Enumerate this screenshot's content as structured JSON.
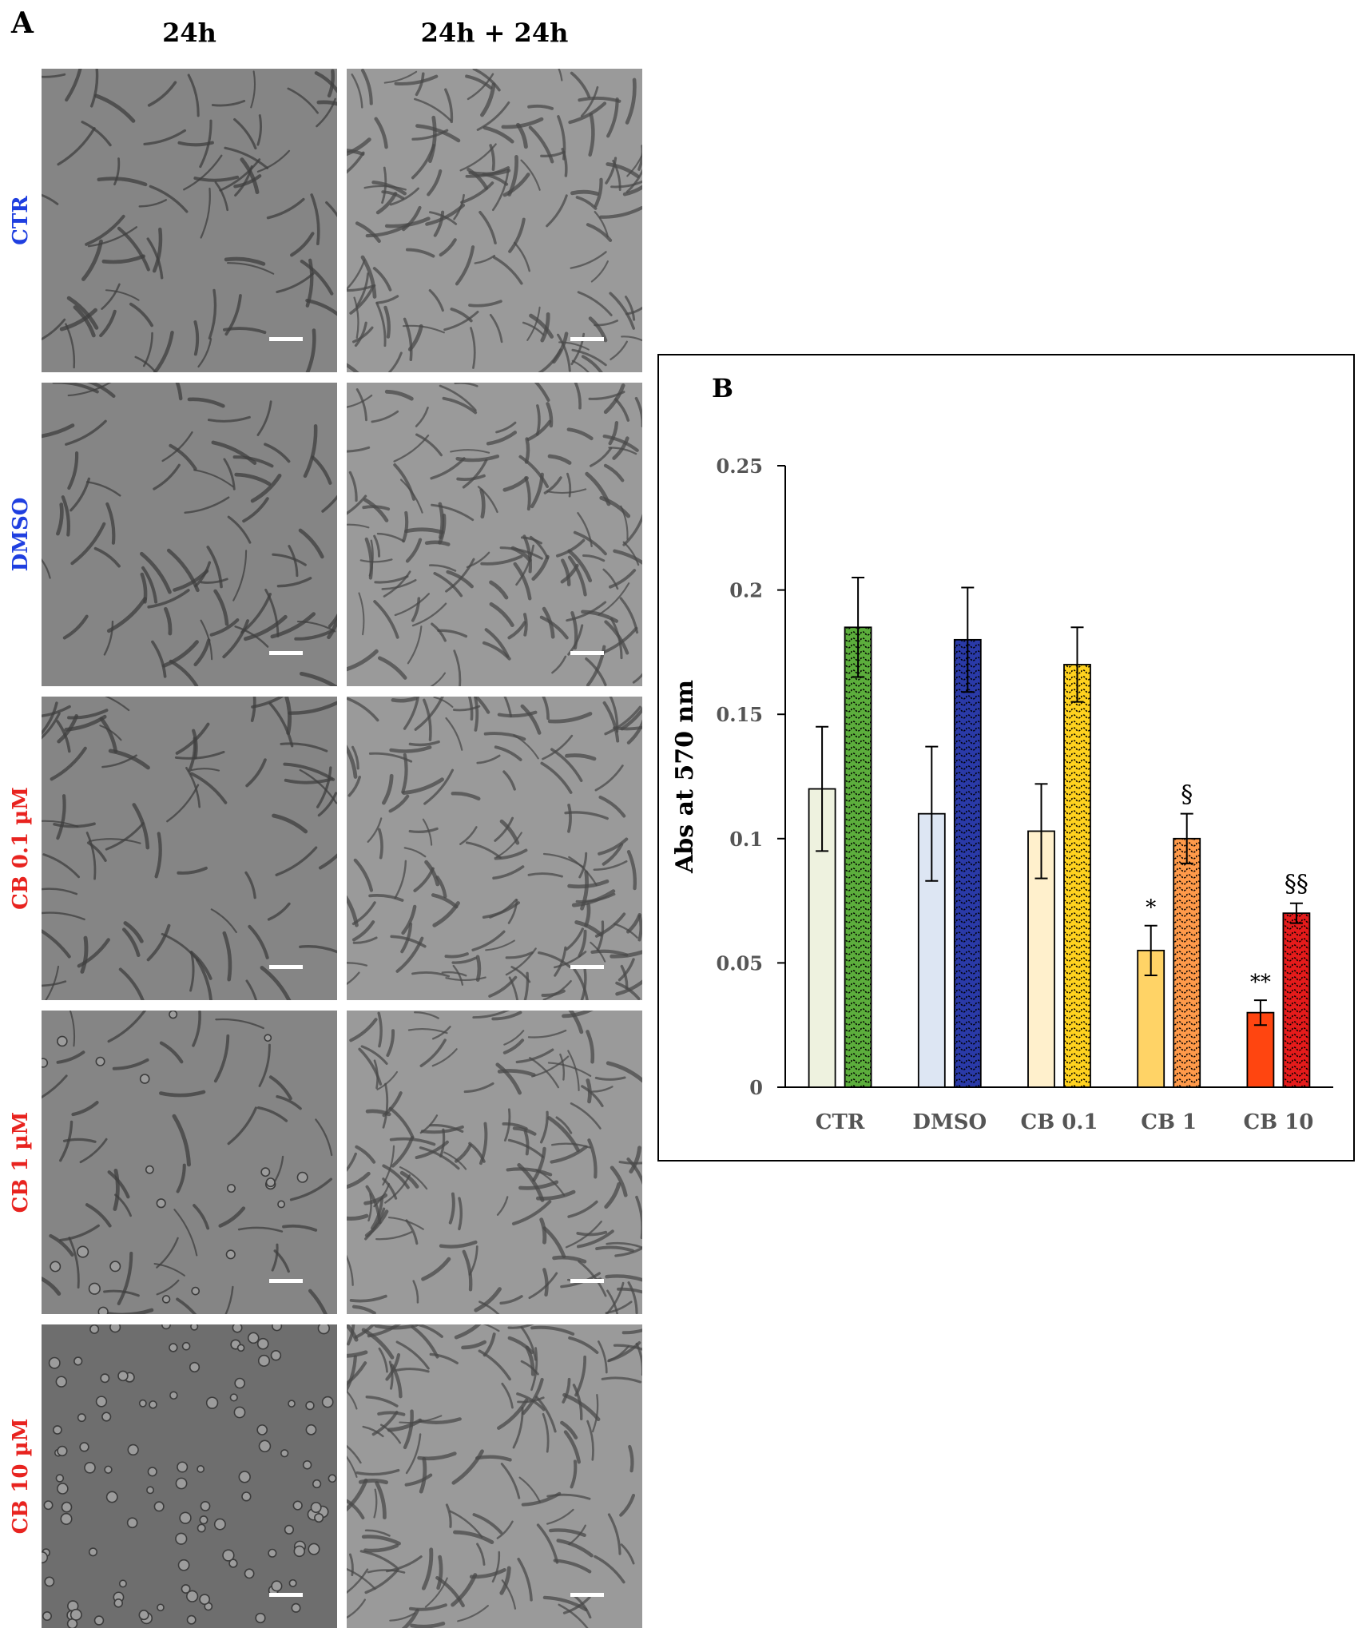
{
  "panel_a": {
    "letter": "A",
    "columns": [
      "24h",
      "24h + 24h"
    ],
    "rows": [
      {
        "label": "CTR",
        "color": "#1f3fe0"
      },
      {
        "label": "DMSO",
        "color": "#1f3fe0"
      },
      {
        "label": "CB 0.1 µM",
        "color": "#e8231f"
      },
      {
        "label": "CB 1 µM",
        "color": "#e8231f"
      },
      {
        "label": "CB 10 µM",
        "color": "#e8231f"
      }
    ]
  },
  "panel_b": {
    "letter": "B"
  },
  "chart_data": {
    "type": "bar",
    "ylabel": "Abs at 570 nm",
    "xlabel": "",
    "ylim": [
      0,
      0.25
    ],
    "yticks": [
      "0",
      "0.05",
      "0.1",
      "0.15",
      "0.2",
      "0.25"
    ],
    "categories": [
      "CTR",
      "DMSO",
      "CB 0.1",
      "CB 1",
      "CB 10"
    ],
    "grid": false,
    "series": [
      {
        "values": [
          0.12,
          0.11,
          0.103,
          0.055,
          0.03
        ],
        "errors": [
          0.025,
          0.027,
          0.019,
          0.01,
          0.005
        ],
        "colors": [
          "#eef2df",
          "#dde6f3",
          "#fff0cc",
          "#ffd366",
          "#ff4510"
        ],
        "pattern": "solid",
        "annotations": [
          "",
          "",
          "",
          "*",
          "**"
        ]
      },
      {
        "values": [
          0.185,
          0.18,
          0.17,
          0.1,
          0.07
        ],
        "errors": [
          0.02,
          0.021,
          0.015,
          0.01,
          0.004
        ],
        "colors": [
          "#5cae3c",
          "#2a3aa8",
          "#ffd21f",
          "#ff9a4a",
          "#e51b1b"
        ],
        "pattern": "wave",
        "annotations": [
          "",
          "",
          "",
          "§",
          "§§"
        ]
      }
    ]
  }
}
